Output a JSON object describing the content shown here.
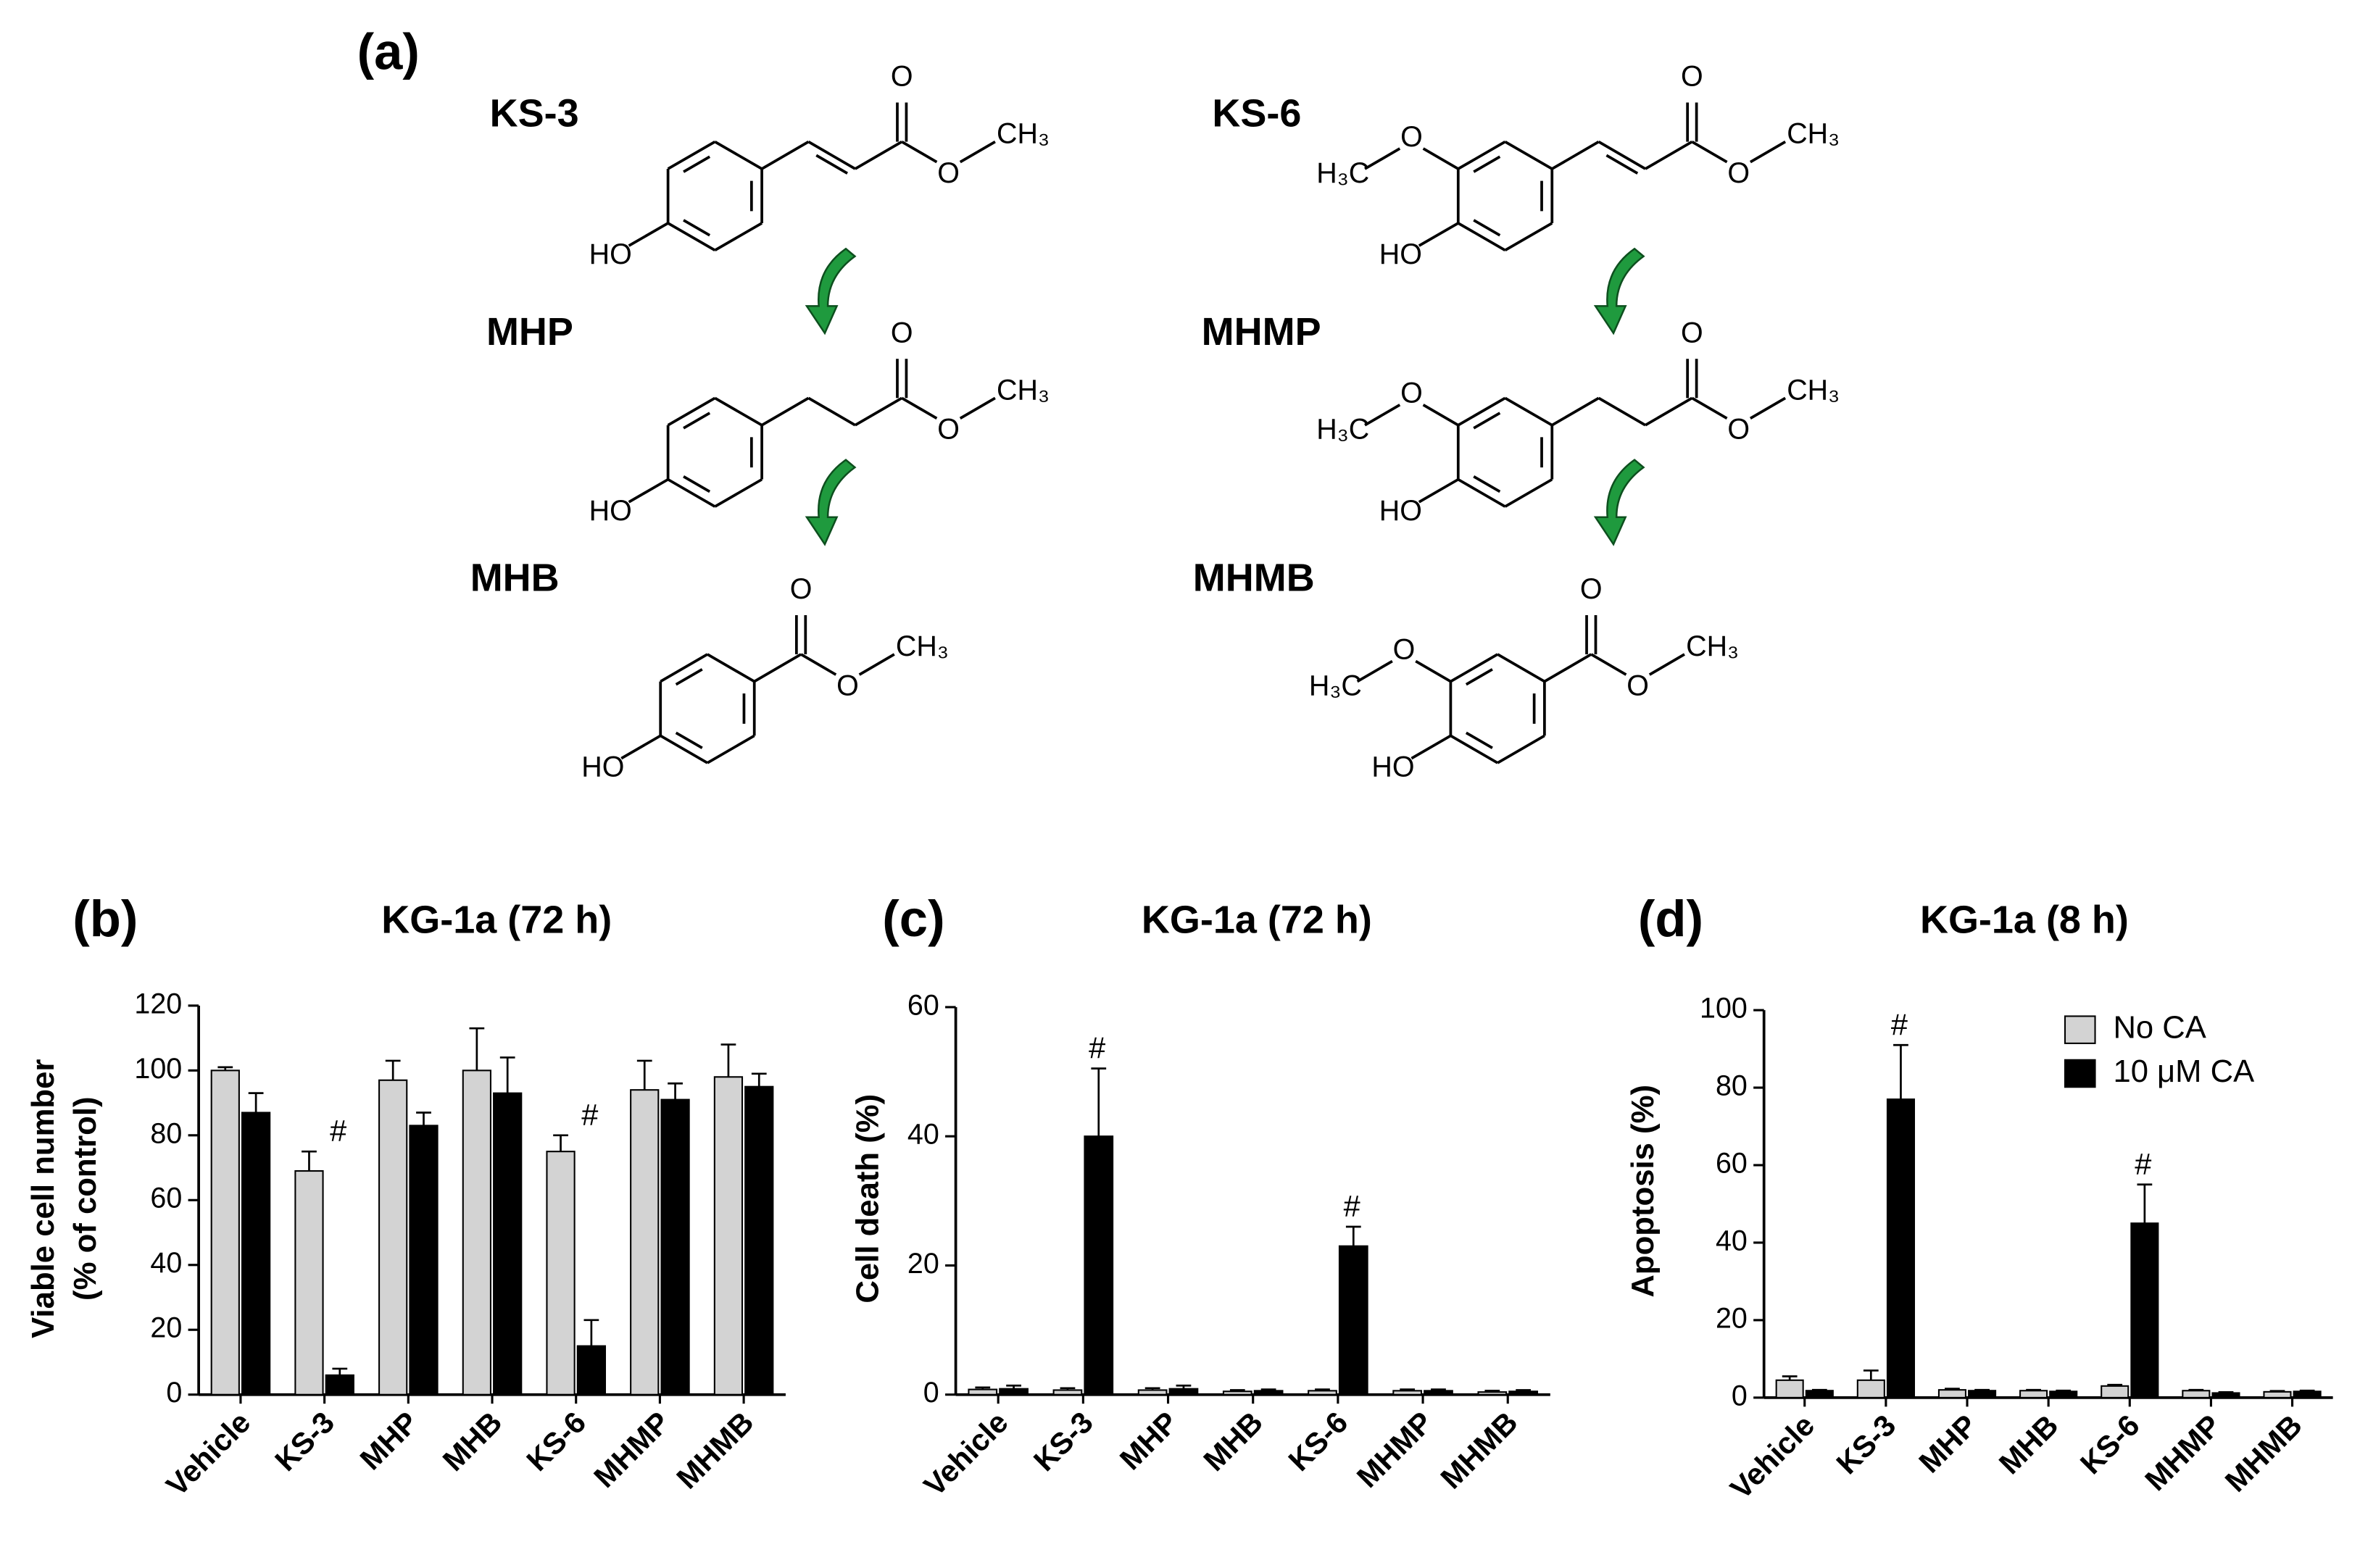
{
  "panel_a": {
    "label": "(a)",
    "compounds": [
      {
        "name": "KS-3",
        "atoms": [
          "O",
          "O",
          "CH₃",
          "HO"
        ]
      },
      {
        "name": "MHP",
        "atoms": [
          "O",
          "O",
          "CH₃",
          "HO"
        ]
      },
      {
        "name": "MHB",
        "atoms": [
          "O",
          "O",
          "CH₃",
          "HO"
        ]
      },
      {
        "name": "KS-6",
        "atoms": [
          "O",
          "O",
          "CH₃",
          "HO",
          "O",
          "H₃C"
        ]
      },
      {
        "name": "MHMP",
        "atoms": [
          "O",
          "O",
          "CH₃",
          "HO",
          "O",
          "H₃C"
        ]
      },
      {
        "name": "MHMB",
        "atoms": [
          "O",
          "O",
          "CH₃",
          "HO",
          "O",
          "H₃C"
        ]
      }
    ]
  },
  "chart_data": [
    {
      "type": "bar",
      "panel": "(b)",
      "title": "KG-1a (72 h)",
      "ylabel": [
        "Viable cell number",
        "(% of control)"
      ],
      "categories": [
        "Vehicle",
        "KS-3",
        "MHP",
        "MHB",
        "KS-6",
        "MHMP",
        "MHMB"
      ],
      "series": [
        {
          "color": "#d3d3d3",
          "values": [
            100,
            69,
            97,
            100,
            75,
            94,
            98
          ],
          "errors": [
            1,
            6,
            6,
            13,
            5,
            9,
            10
          ]
        },
        {
          "color": "#000000",
          "values": [
            87,
            6,
            83,
            93,
            15,
            91,
            95
          ],
          "errors": [
            6,
            2,
            4,
            11,
            8,
            5,
            4
          ]
        }
      ],
      "ylim": [
        0,
        120
      ],
      "yticks": [
        0,
        20,
        40,
        60,
        80,
        100,
        120
      ],
      "annotations": [
        {
          "text": "#",
          "category": "KS-3"
        },
        {
          "text": "#",
          "category": "KS-6"
        }
      ]
    },
    {
      "type": "bar",
      "panel": "(c)",
      "title": "KG-1a (72 h)",
      "ylabel": [
        "Cell death (%)"
      ],
      "categories": [
        "Vehicle",
        "KS-3",
        "MHP",
        "MHB",
        "KS-6",
        "MHMP",
        "MHMB"
      ],
      "series": [
        {
          "color": "#d3d3d3",
          "values": [
            0.8,
            0.7,
            0.7,
            0.5,
            0.6,
            0.6,
            0.4
          ],
          "errors": [
            0.3,
            0.3,
            0.3,
            0.2,
            0.2,
            0.2,
            0.2
          ]
        },
        {
          "color": "#000000",
          "values": [
            0.9,
            40,
            0.9,
            0.6,
            23,
            0.6,
            0.5
          ],
          "errors": [
            0.5,
            10.5,
            0.5,
            0.2,
            3,
            0.2,
            0.2
          ]
        }
      ],
      "ylim": [
        0,
        60
      ],
      "yticks": [
        0,
        20,
        40,
        60
      ],
      "annotations": [
        {
          "text": "#",
          "category": "KS-3"
        },
        {
          "text": "#",
          "category": "KS-6"
        }
      ]
    },
    {
      "type": "bar",
      "panel": "(d)",
      "title": "KG-1a (8 h)",
      "ylabel": [
        "Apoptosis (%)"
      ],
      "categories": [
        "Vehicle",
        "KS-3",
        "MHP",
        "MHB",
        "KS-6",
        "MHMP",
        "MHMB"
      ],
      "series": [
        {
          "name": "No CA",
          "color": "#d3d3d3",
          "values": [
            4.5,
            4.5,
            2,
            1.8,
            3,
            1.8,
            1.5
          ],
          "errors": [
            1,
            2.5,
            0.3,
            0.2,
            0.3,
            0.2,
            0.2
          ]
        },
        {
          "name": "10 μM CA",
          "color": "#000000",
          "values": [
            1.8,
            77,
            1.8,
            1.6,
            45,
            1.2,
            1.6
          ],
          "errors": [
            0.2,
            14,
            0.2,
            0.2,
            10,
            0.2,
            0.2
          ]
        }
      ],
      "ylim": [
        0,
        100
      ],
      "yticks": [
        0,
        20,
        40,
        60,
        80,
        100
      ],
      "legend": "upper right",
      "annotations": [
        {
          "text": "#",
          "category": "KS-3"
        },
        {
          "text": "#",
          "category": "KS-6"
        }
      ]
    }
  ]
}
